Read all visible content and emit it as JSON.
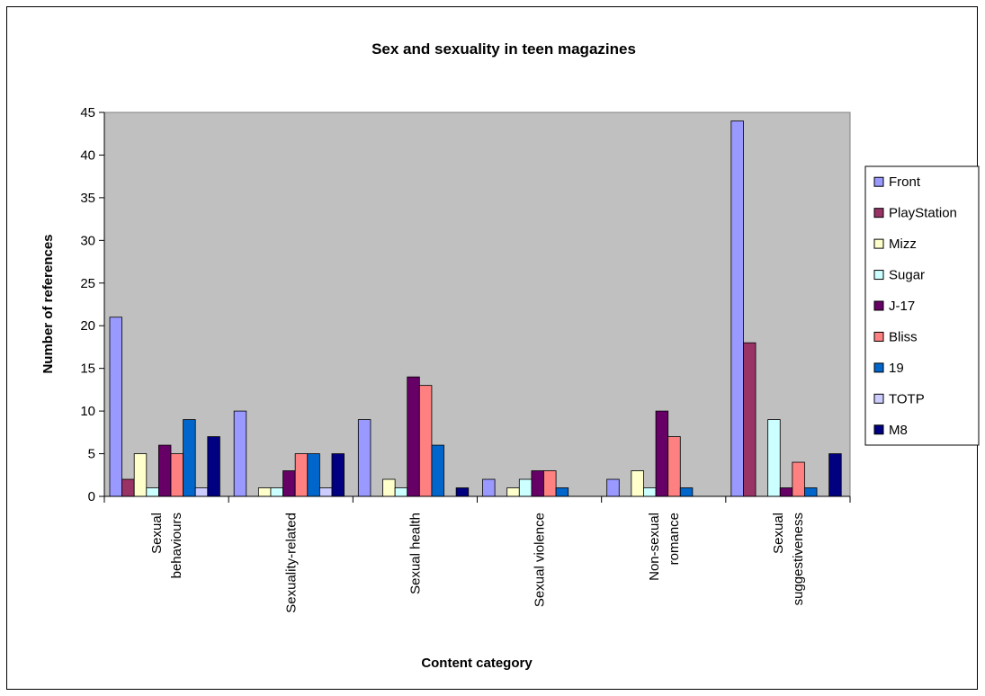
{
  "chart_data": {
    "type": "bar",
    "title": "Sex and sexuality in teen magazines",
    "xlabel": "Content category",
    "ylabel": "Number of references",
    "ylim": [
      0,
      45
    ],
    "yticks": [
      0,
      5,
      10,
      15,
      20,
      25,
      30,
      35,
      40,
      45
    ],
    "grid": false,
    "legend_position": "right",
    "categories": [
      [
        "Sexual",
        "behaviours"
      ],
      [
        "Sexuality-related"
      ],
      [
        "Sexual health"
      ],
      [
        "Sexual violence"
      ],
      [
        "Non-sexual",
        "romance"
      ],
      [
        "Sexual",
        "suggestiveness"
      ]
    ],
    "series": [
      {
        "name": "Front",
        "color": "#9999ff",
        "values": [
          21,
          10,
          9,
          2,
          2,
          44
        ]
      },
      {
        "name": "PlayStation",
        "color": "#993366",
        "values": [
          2,
          0,
          0,
          0,
          0,
          18
        ]
      },
      {
        "name": "Mizz",
        "color": "#ffffcc",
        "values": [
          5,
          1,
          2,
          1,
          3,
          0
        ]
      },
      {
        "name": "Sugar",
        "color": "#ccffff",
        "values": [
          1,
          1,
          1,
          2,
          1,
          9
        ]
      },
      {
        "name": "J-17",
        "color": "#660066",
        "values": [
          6,
          3,
          14,
          3,
          10,
          1
        ]
      },
      {
        "name": "Bliss",
        "color": "#ff8080",
        "values": [
          5,
          5,
          13,
          3,
          7,
          4
        ]
      },
      {
        "name": "19",
        "color": "#0066cc",
        "values": [
          9,
          5,
          6,
          1,
          1,
          1
        ]
      },
      {
        "name": "TOTP",
        "color": "#ccccff",
        "values": [
          1,
          1,
          0,
          0,
          0,
          0
        ]
      },
      {
        "name": "M8",
        "color": "#000080",
        "values": [
          7,
          5,
          1,
          0,
          0,
          5
        ]
      }
    ],
    "plot_background": "#c0c0c0"
  }
}
